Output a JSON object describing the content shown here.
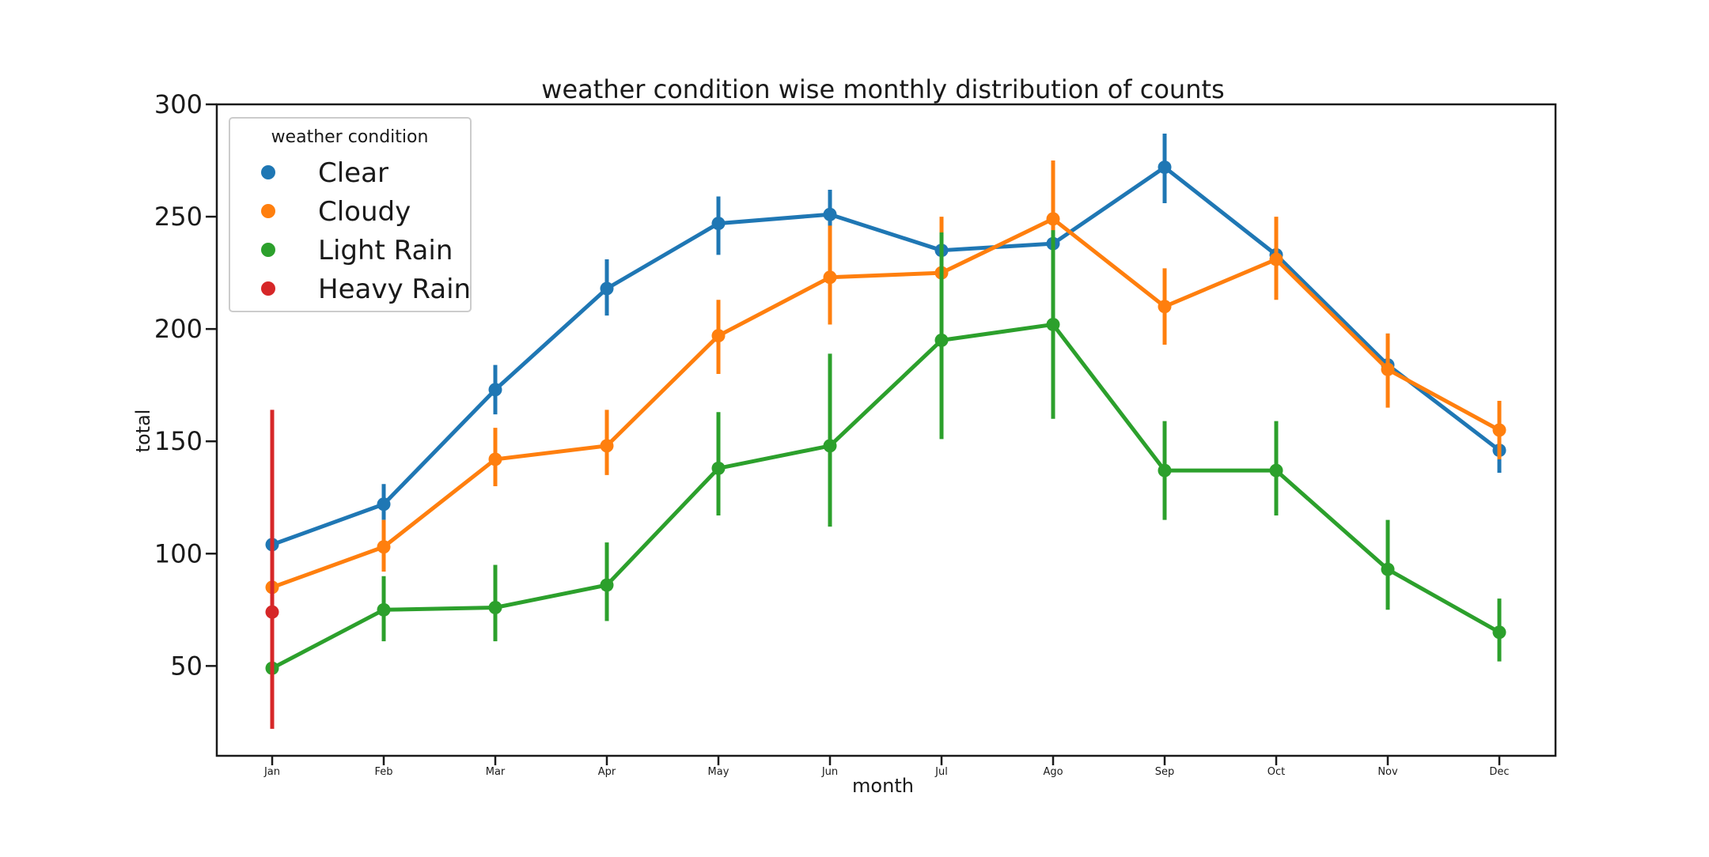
{
  "chart_data": {
    "type": "line",
    "title": "weather condition wise monthly distribution of counts",
    "xlabel": "month",
    "ylabel": "total",
    "categories": [
      "Jan",
      "Feb",
      "Mar",
      "Apr",
      "May",
      "Jun",
      "Jul",
      "Ago",
      "Sep",
      "Oct",
      "Nov",
      "Dec"
    ],
    "ylim": [
      10,
      300
    ],
    "yticks": [
      50,
      100,
      150,
      200,
      250,
      300
    ],
    "grid": false,
    "legend": {
      "title": "weather condition",
      "placement": "top-left"
    },
    "series": [
      {
        "name": "Clear",
        "color": "#1f77b4",
        "values": [
          104,
          122,
          173,
          218,
          247,
          251,
          235,
          238,
          272,
          233,
          184,
          146
        ],
        "ci_low": [
          97,
          115,
          162,
          206,
          233,
          240,
          224,
          227,
          256,
          220,
          170,
          136
        ],
        "ci_high": [
          111,
          131,
          184,
          231,
          259,
          262,
          246,
          249,
          287,
          246,
          198,
          156
        ]
      },
      {
        "name": "Cloudy",
        "color": "#ff7f0e",
        "values": [
          85,
          103,
          142,
          148,
          197,
          223,
          225,
          249,
          210,
          231,
          182,
          155
        ],
        "ci_low": [
          77,
          92,
          130,
          135,
          180,
          202,
          212,
          232,
          193,
          213,
          165,
          142
        ],
        "ci_high": [
          94,
          115,
          156,
          164,
          213,
          246,
          250,
          275,
          227,
          250,
          198,
          168
        ]
      },
      {
        "name": "Light Rain",
        "color": "#2ca02c",
        "values": [
          49,
          75,
          76,
          86,
          138,
          148,
          195,
          202,
          137,
          137,
          93,
          65
        ],
        "ci_low": [
          45,
          61,
          61,
          70,
          117,
          112,
          151,
          160,
          115,
          117,
          75,
          52
        ],
        "ci_high": [
          56,
          90,
          95,
          105,
          163,
          189,
          243,
          244,
          159,
          159,
          115,
          80
        ]
      },
      {
        "name": "Heavy Rain",
        "color": "#d62728",
        "values": [
          74,
          null,
          null,
          null,
          null,
          null,
          null,
          null,
          null,
          null,
          null,
          null
        ],
        "ci_low": [
          22,
          null,
          null,
          null,
          null,
          null,
          null,
          null,
          null,
          null,
          null,
          null
        ],
        "ci_high": [
          164,
          null,
          null,
          null,
          null,
          null,
          null,
          null,
          null,
          null,
          null,
          null
        ]
      }
    ]
  }
}
